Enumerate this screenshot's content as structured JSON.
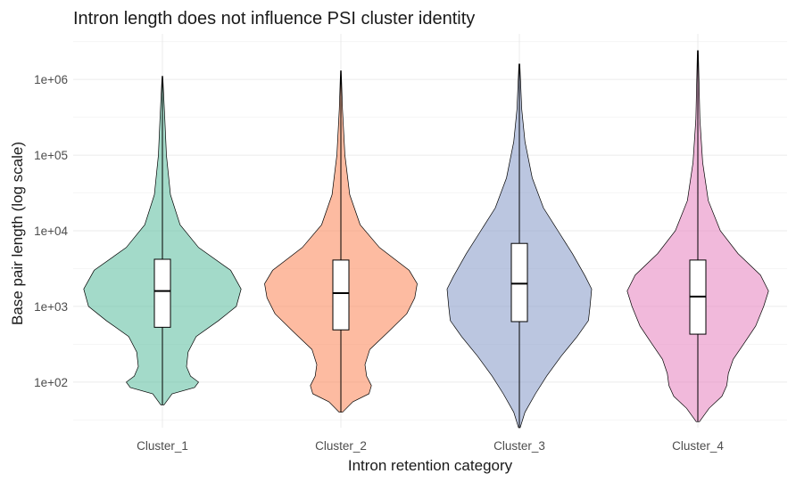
{
  "chart_data": {
    "type": "violin",
    "title": "Intron length does not influence PSI cluster identity",
    "xlabel": "Intron retention category",
    "ylabel": "Base pair length (log scale)",
    "y_scale": "log10",
    "ylim": [
      25,
      4000000
    ],
    "y_ticks": [
      100,
      1000,
      10000,
      100000,
      1000000
    ],
    "y_tick_labels": [
      "1e+02",
      "1e+03",
      "1e+04",
      "1e+05",
      "1e+06"
    ],
    "grid": true,
    "legend": "none",
    "categories": [
      "Cluster_1",
      "Cluster_2",
      "Cluster_3",
      "Cluster_4"
    ],
    "series": [
      {
        "category": "Cluster_1",
        "color": "#66C2A5",
        "min": 50,
        "q1": 530,
        "median": 1600,
        "q3": 4200,
        "max": 1100000,
        "density": [
          [
            50,
            0.02
          ],
          [
            70,
            0.12
          ],
          [
            85,
            0.4
          ],
          [
            100,
            0.45
          ],
          [
            120,
            0.35
          ],
          [
            160,
            0.3
          ],
          [
            250,
            0.32
          ],
          [
            400,
            0.42
          ],
          [
            650,
            0.7
          ],
          [
            1000,
            0.92
          ],
          [
            1700,
            0.98
          ],
          [
            3000,
            0.85
          ],
          [
            6000,
            0.45
          ],
          [
            12000,
            0.22
          ],
          [
            30000,
            0.1
          ],
          [
            100000,
            0.05
          ],
          [
            300000,
            0.03
          ],
          [
            1100000,
            0.005
          ]
        ]
      },
      {
        "category": "Cluster_2",
        "color": "#FC8D62",
        "min": 40,
        "q1": 490,
        "median": 1500,
        "q3": 4100,
        "max": 1300000,
        "density": [
          [
            40,
            0.02
          ],
          [
            55,
            0.15
          ],
          [
            70,
            0.35
          ],
          [
            90,
            0.38
          ],
          [
            120,
            0.32
          ],
          [
            170,
            0.3
          ],
          [
            270,
            0.36
          ],
          [
            450,
            0.58
          ],
          [
            800,
            0.82
          ],
          [
            1300,
            0.92
          ],
          [
            2000,
            0.95
          ],
          [
            3000,
            0.85
          ],
          [
            6000,
            0.48
          ],
          [
            12000,
            0.24
          ],
          [
            30000,
            0.11
          ],
          [
            100000,
            0.05
          ],
          [
            400000,
            0.02
          ],
          [
            1300000,
            0.005
          ]
        ]
      },
      {
        "category": "Cluster_3",
        "color": "#8DA0CB",
        "min": 25,
        "q1": 630,
        "median": 2000,
        "q3": 6800,
        "max": 1600000,
        "density": [
          [
            25,
            0.01
          ],
          [
            40,
            0.07
          ],
          [
            70,
            0.2
          ],
          [
            120,
            0.34
          ],
          [
            220,
            0.52
          ],
          [
            400,
            0.72
          ],
          [
            650,
            0.86
          ],
          [
            1000,
            0.88
          ],
          [
            1700,
            0.9
          ],
          [
            2500,
            0.82
          ],
          [
            5000,
            0.66
          ],
          [
            10000,
            0.48
          ],
          [
            20000,
            0.3
          ],
          [
            50000,
            0.16
          ],
          [
            150000,
            0.07
          ],
          [
            400000,
            0.03
          ],
          [
            1600000,
            0.005
          ]
        ]
      },
      {
        "category": "Cluster_4",
        "color": "#E78AC3",
        "min": 30,
        "q1": 430,
        "median": 1350,
        "q3": 4100,
        "max": 2400000,
        "density": [
          [
            30,
            0.02
          ],
          [
            45,
            0.14
          ],
          [
            65,
            0.3
          ],
          [
            90,
            0.36
          ],
          [
            130,
            0.38
          ],
          [
            200,
            0.44
          ],
          [
            330,
            0.58
          ],
          [
            550,
            0.72
          ],
          [
            1000,
            0.82
          ],
          [
            1600,
            0.88
          ],
          [
            2600,
            0.78
          ],
          [
            5000,
            0.5
          ],
          [
            10000,
            0.28
          ],
          [
            25000,
            0.13
          ],
          [
            80000,
            0.06
          ],
          [
            300000,
            0.025
          ],
          [
            2400000,
            0.005
          ]
        ]
      }
    ]
  }
}
